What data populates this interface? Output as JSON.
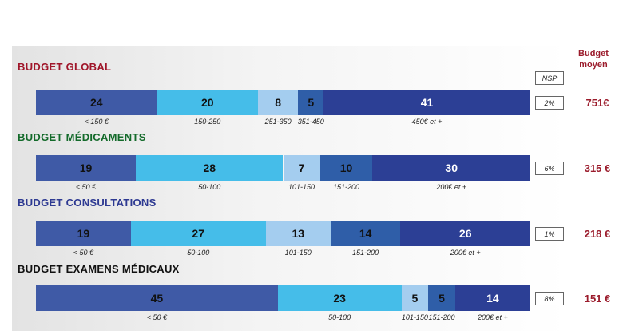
{
  "header": {
    "nsp_label": "NSP",
    "budget_line1": "Budget",
    "budget_line2": "moyen"
  },
  "colors": {
    "budget_header": "#9b1c2c",
    "avg_value": "#9b1c2c",
    "seg_c1": "#3f5aa6",
    "seg_c2": "#45bde9",
    "seg_c3": "#a4cdef",
    "seg_c4": "#2f5ea8",
    "seg_c5": "#2c3f95"
  },
  "chart_data": [
    {
      "type": "bar",
      "orientation": "horizontal-stacked",
      "title": "BUDGET GLOBAL",
      "title_color": "#a0162a",
      "categories": [
        "< 150 €",
        "150-250",
        "251-350",
        "351-450",
        "450€ et +"
      ],
      "values": [
        24,
        20,
        8,
        5,
        41
      ],
      "nsp": "2%",
      "average": "751€"
    },
    {
      "type": "bar",
      "orientation": "horizontal-stacked",
      "title": "BUDGET MÉDICAMENTS",
      "title_color": "#136a2a",
      "categories": [
        "< 50 €",
        "50-100",
        "101-150",
        "151-200",
        "200€ et +"
      ],
      "values": [
        19,
        28,
        7,
        10,
        30
      ],
      "nsp": "6%",
      "average": "315 €"
    },
    {
      "type": "bar",
      "orientation": "horizontal-stacked",
      "title": "BUDGET CONSULTATIONS",
      "title_color": "#2e3a92",
      "categories": [
        "< 50 €",
        "50-100",
        "101-150",
        "151-200",
        "200€ et +"
      ],
      "values": [
        19,
        27,
        13,
        14,
        26
      ],
      "nsp": "1%",
      "average": "218 €"
    },
    {
      "type": "bar",
      "orientation": "horizontal-stacked",
      "title": "BUDGET EXAMENS MÉDICAUX",
      "title_color": "#111111",
      "categories": [
        "< 50 €",
        "50-100",
        "101-150",
        "151-200",
        "200€ et +"
      ],
      "values": [
        45,
        23,
        5,
        5,
        14
      ],
      "nsp": "8%",
      "average": "151 €"
    }
  ]
}
